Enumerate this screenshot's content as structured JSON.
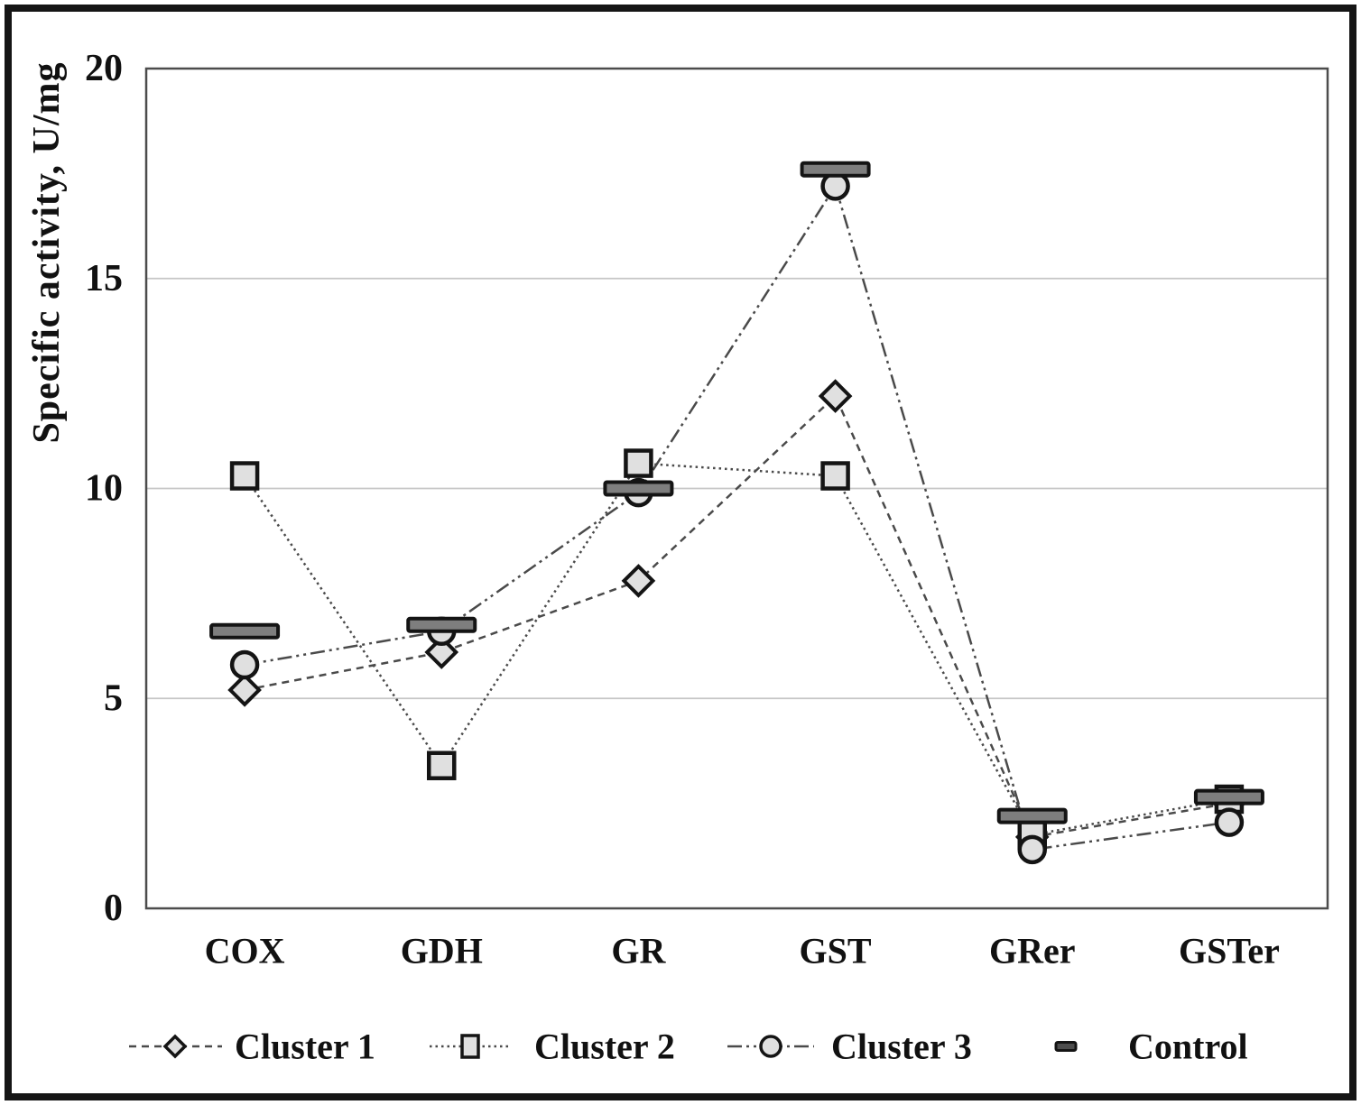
{
  "figure": {
    "background_color": "#ffffff",
    "border_color": "#151515"
  },
  "chart_data": {
    "type": "line",
    "title": "",
    "xlabel": "",
    "ylabel": "Specific activity, U/mg",
    "ylim": [
      0,
      20
    ],
    "yticks": [
      0,
      5,
      10,
      15,
      20
    ],
    "ytick_labels": [
      "0",
      "5",
      "10",
      "15",
      "20"
    ],
    "grid": "horizontal",
    "legend_position": "bottom",
    "categories": [
      "COX",
      "GDH",
      "GR",
      "GST",
      "GRer",
      "GSTer"
    ],
    "series": [
      {
        "name": "Cluster 1",
        "marker": "diamond",
        "line": "dashed",
        "values": [
          5.2,
          6.1,
          7.8,
          12.2,
          1.7,
          2.5
        ]
      },
      {
        "name": "Cluster 2",
        "marker": "square",
        "line": "dotted",
        "values": [
          10.3,
          3.4,
          10.6,
          10.3,
          1.75,
          2.6
        ]
      },
      {
        "name": "Cluster 3",
        "marker": "circle",
        "line": "dash-dot",
        "values": [
          5.8,
          6.6,
          9.9,
          17.2,
          1.4,
          2.05
        ]
      },
      {
        "name": "Control",
        "marker": "bar",
        "line": "none",
        "values": [
          6.6,
          6.75,
          10.0,
          17.6,
          2.2,
          2.65
        ]
      }
    ],
    "colors": {
      "line": "#4a4a4a",
      "grid": "#c6c6c6",
      "axis": "#4c4c4c",
      "marker_fill": "#e0e0e0",
      "marker_stroke": "#141414",
      "control_fill": "#7e7e7e",
      "legend_control_fill": "#4d4d4d",
      "text": "#111111"
    }
  }
}
